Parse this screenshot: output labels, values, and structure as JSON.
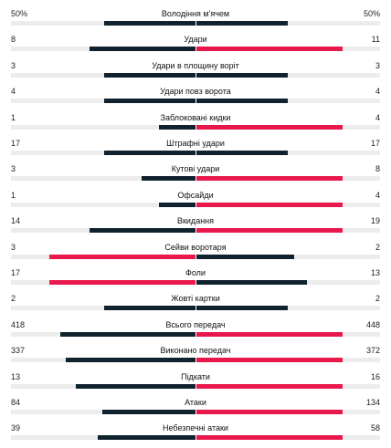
{
  "colors": {
    "home": "#10222e",
    "away": "#e8174c",
    "track": "#ececec"
  },
  "stats": [
    {
      "label": "Володіння м'ячем",
      "home": "50%",
      "away": "50%",
      "home_share": 0.5,
      "away_share": 0.5,
      "home_rel": 1.0,
      "away_rel": 0.5,
      "away_color": "#10222e"
    },
    {
      "label": "Удари",
      "home": "8",
      "away": "11",
      "home_share": 0.42,
      "away_share": 0.58
    },
    {
      "label": "Удари в площину воріт",
      "home": "3",
      "away": "3",
      "home_share": 0.5,
      "away_share": 0.5,
      "home_rel": 1.0,
      "away_rel": 0.5,
      "away_color": "#10222e"
    },
    {
      "label": "Удари повз ворота",
      "home": "4",
      "away": "4",
      "home_share": 0.5,
      "away_share": 0.5,
      "home_rel": 1.0,
      "away_rel": 0.5,
      "away_color": "#10222e"
    },
    {
      "label": "Заблоковані кидки",
      "home": "1",
      "away": "4",
      "home_share": 0.2,
      "away_share": 0.8
    },
    {
      "label": "Штрафні удари",
      "home": "17",
      "away": "17",
      "home_share": 0.5,
      "away_share": 0.5,
      "home_rel": 1.0,
      "away_rel": 0.5,
      "away_color": "#10222e"
    },
    {
      "label": "Кутові удари",
      "home": "3",
      "away": "8",
      "home_share": 0.27,
      "away_share": 0.73
    },
    {
      "label": "Офсайди",
      "home": "1",
      "away": "4",
      "home_share": 0.2,
      "away_share": 0.8
    },
    {
      "label": "Вкидання",
      "home": "14",
      "away": "19",
      "home_share": 0.42,
      "away_share": 0.58
    },
    {
      "label": "Сейви воротаря",
      "home": "3",
      "away": "2",
      "home_share": 0.6,
      "away_share": 0.4,
      "home_color": "#e8174c",
      "away_color": "#10222e"
    },
    {
      "label": "Фоли",
      "home": "17",
      "away": "13",
      "home_share": 0.57,
      "away_share": 0.43,
      "home_color": "#e8174c",
      "away_color": "#10222e"
    },
    {
      "label": "Жовті картки",
      "home": "2",
      "away": "2",
      "home_share": 0.5,
      "away_share": 0.5,
      "home_rel": 1.0,
      "away_rel": 0.5,
      "away_color": "#10222e"
    },
    {
      "label": "Всього передач",
      "home": "418",
      "away": "448",
      "home_share": 0.48,
      "away_share": 0.52
    },
    {
      "label": "Виконано передач",
      "home": "337",
      "away": "372",
      "home_share": 0.47,
      "away_share": 0.53
    },
    {
      "label": "Підкати",
      "home": "13",
      "away": "16",
      "home_share": 0.45,
      "away_share": 0.55
    },
    {
      "label": "Атаки",
      "home": "84",
      "away": "134",
      "home_share": 0.39,
      "away_share": 0.61
    },
    {
      "label": "Небезпечні атаки",
      "home": "39",
      "away": "58",
      "home_share": 0.4,
      "away_share": 0.6
    }
  ]
}
